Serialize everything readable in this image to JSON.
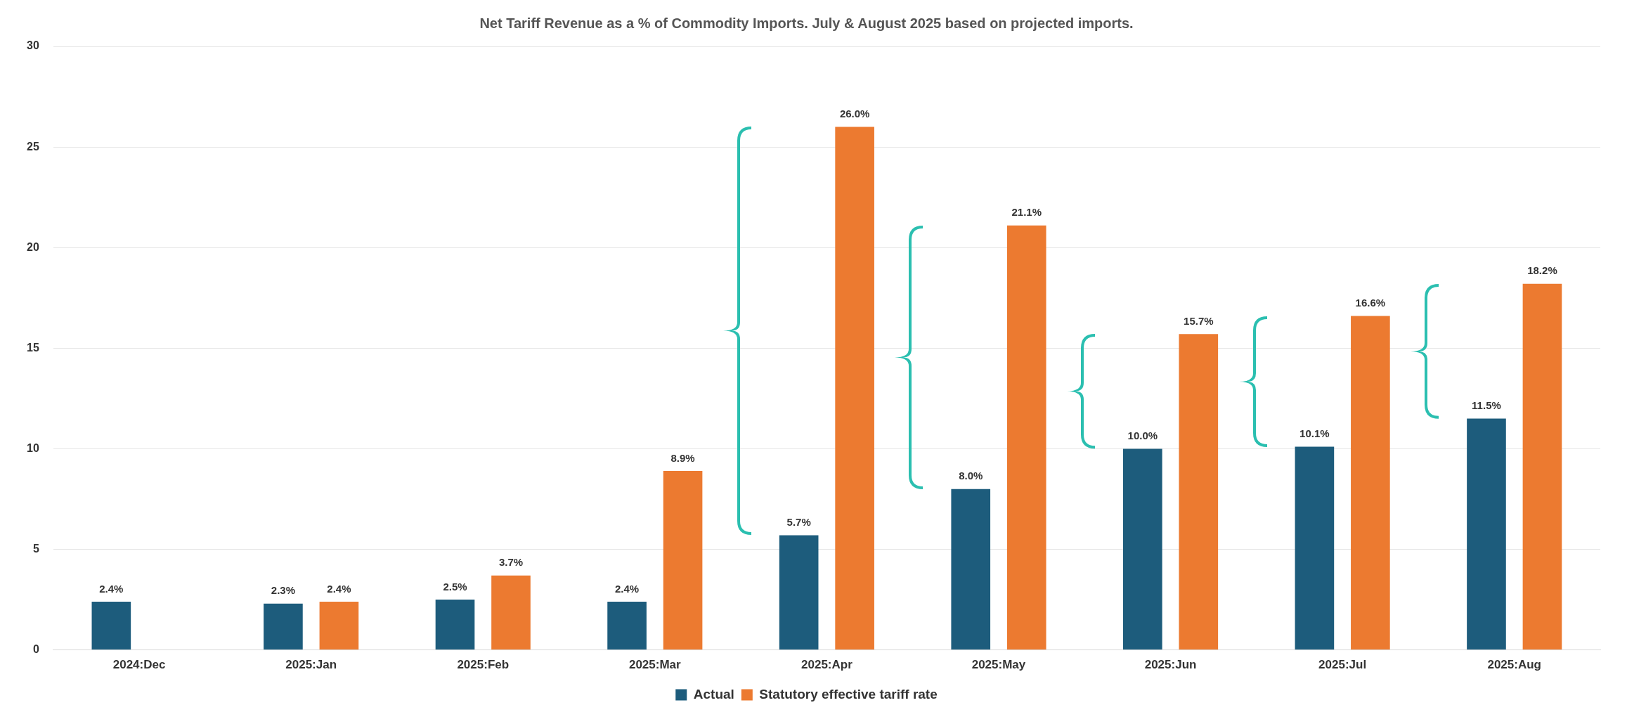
{
  "chart_data": {
    "type": "bar",
    "title": "Net Tariff Revenue as a % of Commodity Imports. July & August 2025 based on projected imports.",
    "categories": [
      "2024:Dec",
      "2025:Jan",
      "2025:Feb",
      "2025:Mar",
      "2025:Apr",
      "2025:May",
      "2025:Jun",
      "2025:Jul",
      "2025:Aug"
    ],
    "series": [
      {
        "name": "Actual",
        "color": "#1d5c7c",
        "values": [
          2.4,
          2.3,
          2.5,
          2.4,
          5.7,
          8.0,
          10.0,
          10.1,
          11.5
        ],
        "value_labels": [
          "2.4%",
          "2.3%",
          "2.5%",
          "2.4%",
          "5.7%",
          "8.0%",
          "10.0%",
          "10.1%",
          "11.5%"
        ]
      },
      {
        "name": "Statutory effective tariff rate",
        "color": "#ec7a30",
        "values": [
          null,
          2.4,
          3.7,
          8.9,
          26.0,
          21.1,
          15.7,
          16.6,
          18.2
        ],
        "value_labels": [
          null,
          "2.4%",
          "3.7%",
          "8.9%",
          "26.0%",
          "21.1%",
          "15.7%",
          "16.6%",
          "18.2%"
        ]
      }
    ],
    "ylim": [
      0,
      30
    ],
    "yticks": [
      0,
      5,
      10,
      15,
      20,
      25,
      30
    ],
    "grid": "y",
    "legend": "bottom"
  }
}
